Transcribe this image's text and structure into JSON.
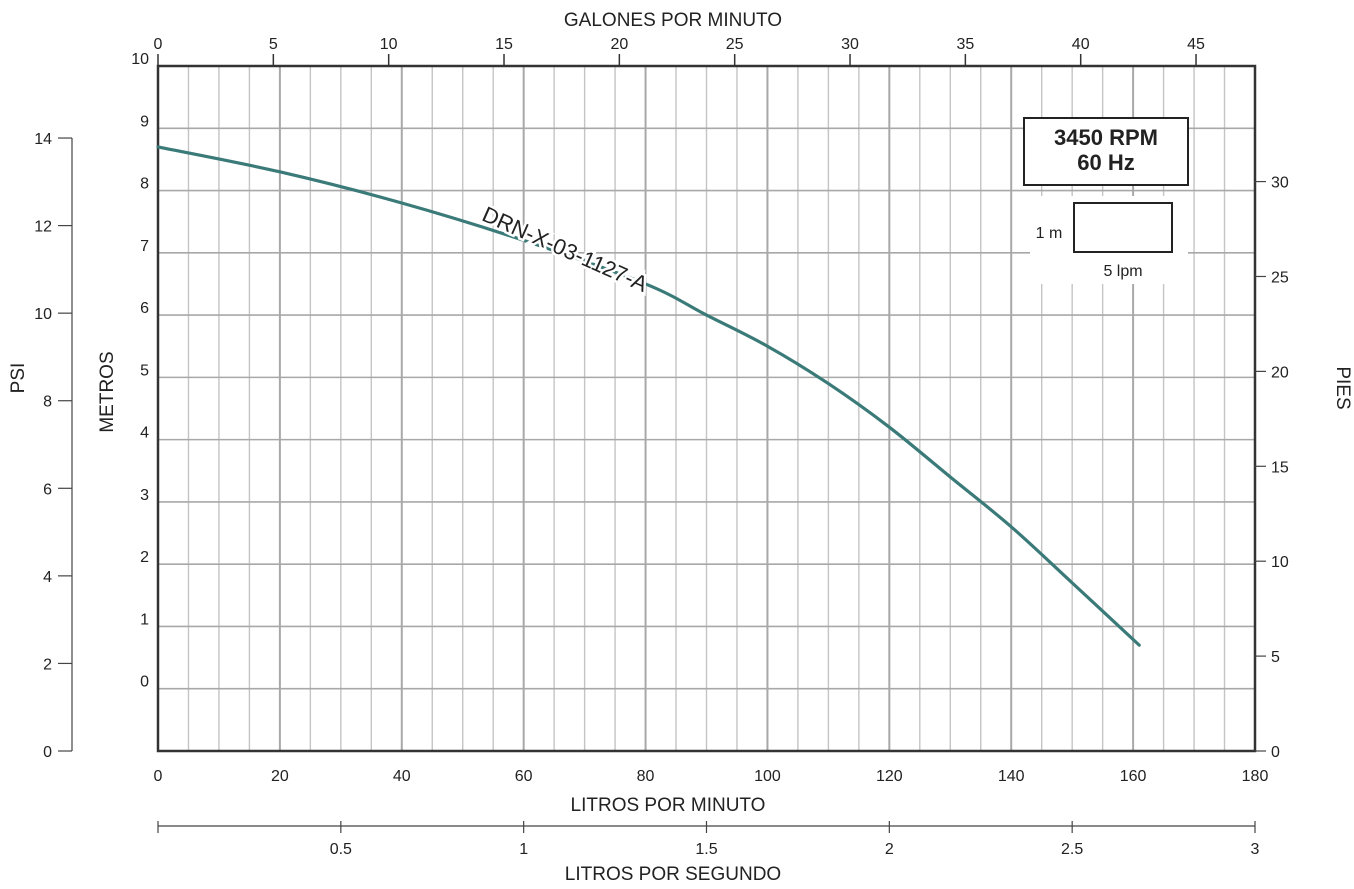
{
  "chart_data": {
    "type": "line",
    "x_top": {
      "label": "GALONES POR MINUTO",
      "ticks": [
        0,
        5,
        10,
        15,
        20,
        25,
        30,
        35,
        40,
        45
      ]
    },
    "x_bottom": {
      "label": "LITROS POR MINUTO",
      "ticks": [
        0,
        20,
        40,
        60,
        80,
        100,
        120,
        140,
        160,
        180
      ],
      "range": [
        0,
        180
      ]
    },
    "x_bottom2": {
      "label": "LITROS POR SEGUNDO",
      "ticks": [
        "0.5",
        "1",
        "1.5",
        "2",
        "2.5",
        "3"
      ]
    },
    "y_psi": {
      "label": "PSI",
      "ticks": [
        0,
        2,
        4,
        6,
        8,
        10,
        12,
        14
      ]
    },
    "y_metros": {
      "label": "METROS",
      "ticks": [
        0,
        1,
        2,
        3,
        4,
        5,
        6,
        7,
        8,
        9,
        10
      ],
      "range": [
        -1,
        10
      ]
    },
    "y_pies": {
      "label": "PIES",
      "ticks": [
        0,
        5,
        10,
        15,
        20,
        25,
        30
      ]
    },
    "info_box": {
      "line1": "3450 RPM",
      "line2": "60 Hz"
    },
    "scale_box": {
      "v_label": "1 m",
      "h_label": "5 lpm"
    },
    "series": [
      {
        "name": "DRN-X-03-1127-A",
        "color": "#3a7a78",
        "x": [
          0,
          20,
          40,
          60,
          80,
          90,
          100,
          110,
          120,
          130,
          140,
          150,
          161
        ],
        "y": [
          8.7,
          8.3,
          7.8,
          7.2,
          6.5,
          6.0,
          5.5,
          4.9,
          4.2,
          3.4,
          2.6,
          1.7,
          0.7
        ]
      }
    ],
    "grid": true
  }
}
